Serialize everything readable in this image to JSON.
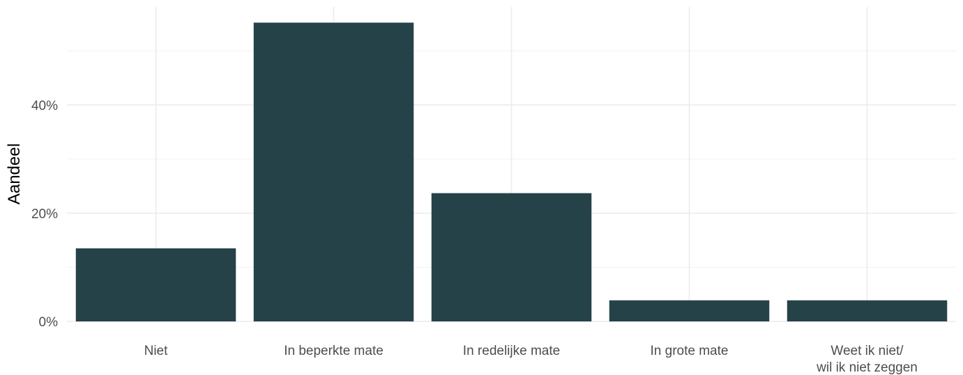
{
  "chart_data": {
    "type": "bar",
    "categories": [
      [
        "Niet"
      ],
      [
        "In beperkte mate"
      ],
      [
        "In redelijke mate"
      ],
      [
        "In grote mate"
      ],
      [
        "Weet ik niet/",
        "wil ik niet zeggen"
      ]
    ],
    "values": [
      13.5,
      55.2,
      23.7,
      3.9,
      3.9
    ],
    "ylabel": "Aandeel",
    "xlabel": "",
    "ylim": [
      0,
      58
    ],
    "yticks": [
      0,
      20,
      40
    ],
    "ytick_labels": [
      "0%",
      "20%",
      "40%"
    ],
    "grid": true,
    "bar_color": "#264249"
  }
}
